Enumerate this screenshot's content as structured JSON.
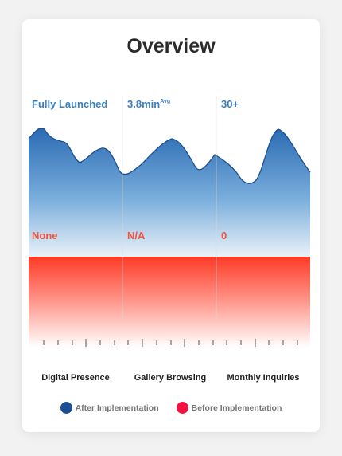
{
  "title": "Overview",
  "colors": {
    "after": "#1f5fa6",
    "after_light": "#e9f0f8",
    "before": "#ff3a26",
    "before_dot": "#f2123f",
    "after_dot": "#1a4f93"
  },
  "chart_data": {
    "type": "area",
    "categories": [
      "Digital Presence",
      "Gallery Browsing",
      "Monthly Inquiries"
    ],
    "after_labels": [
      {
        "text": "Fully Launched",
        "sup": ""
      },
      {
        "text": "3.8min",
        "sup": "Avg"
      },
      {
        "text": "30+",
        "sup": ""
      }
    ],
    "before_labels": [
      {
        "text": "None"
      },
      {
        "text": "N/A"
      },
      {
        "text": "0"
      }
    ],
    "legend": [
      {
        "label": "After Implementation",
        "color": "#1a4f93"
      },
      {
        "label": "Before Implementation",
        "color": "#f2123f"
      }
    ]
  }
}
